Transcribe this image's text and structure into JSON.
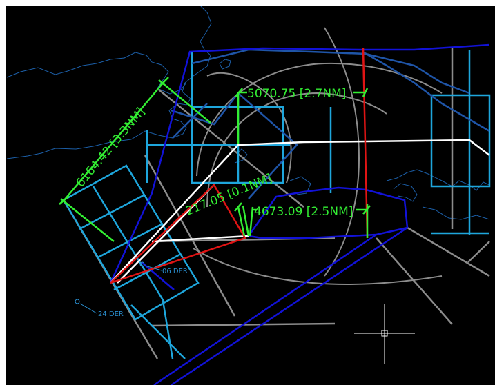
{
  "colors": {
    "background": "#000000",
    "page": "#ffffff",
    "coastline": "#1c5fa8",
    "grey_lines": "#8c8c8c",
    "light_blue_lines": "#1ea6dc",
    "dark_blue_lines": "#1f55a8",
    "blue_lines": "#1212d8",
    "white_lines": "#ffffff",
    "red_lines": "#e01414",
    "dimension_green": "#33ee33",
    "runway_label": "#2a8fd0",
    "crosshair": "#ffffff"
  },
  "dimensions": [
    {
      "id": "dim-6164",
      "text": "6164.42 [3.3NM]"
    },
    {
      "id": "dim-5070",
      "text": "5070.75 [2.7NM]"
    },
    {
      "id": "dim-217",
      "text": "217.05 [0.1NM]"
    },
    {
      "id": "dim-4673",
      "text": "4673.09 [2.5NM]"
    }
  ],
  "runway_labels": [
    {
      "id": "rwy-06",
      "text": "06 DER"
    },
    {
      "id": "rwy-24",
      "text": "24 DER"
    }
  ],
  "cursor": {
    "type": "crosshair",
    "icon": "crosshair-cursor-icon"
  }
}
